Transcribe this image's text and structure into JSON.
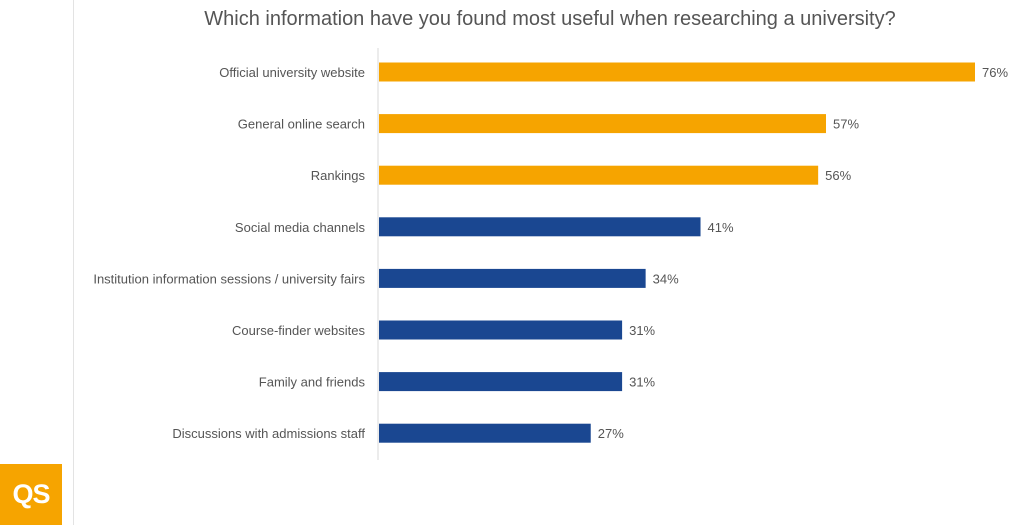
{
  "chart_data": {
    "type": "bar",
    "orientation": "horizontal",
    "title": "Which information have you found most useful when researching a university?",
    "categories": [
      "Official university website",
      "General online search",
      "Rankings",
      "Social media channels",
      "Institution information sessions / university fairs",
      "Course-finder websites",
      "Family and friends",
      "Discussions with admissions staff"
    ],
    "values": [
      76,
      57,
      56,
      41,
      34,
      31,
      31,
      27
    ],
    "value_labels": [
      "76%",
      "57%",
      "56%",
      "41%",
      "34%",
      "31%",
      "31%",
      "27%"
    ],
    "unit": "%",
    "xlim": [
      0,
      76
    ],
    "grid": false,
    "legend": "none",
    "colors": {
      "highlight": "#f6a400",
      "default": "#1a4791",
      "label_text": "#555555",
      "axis": "#d9d9d9"
    },
    "highlight_count": 3
  },
  "logo": {
    "text": "QS",
    "color": "#f6a400"
  }
}
